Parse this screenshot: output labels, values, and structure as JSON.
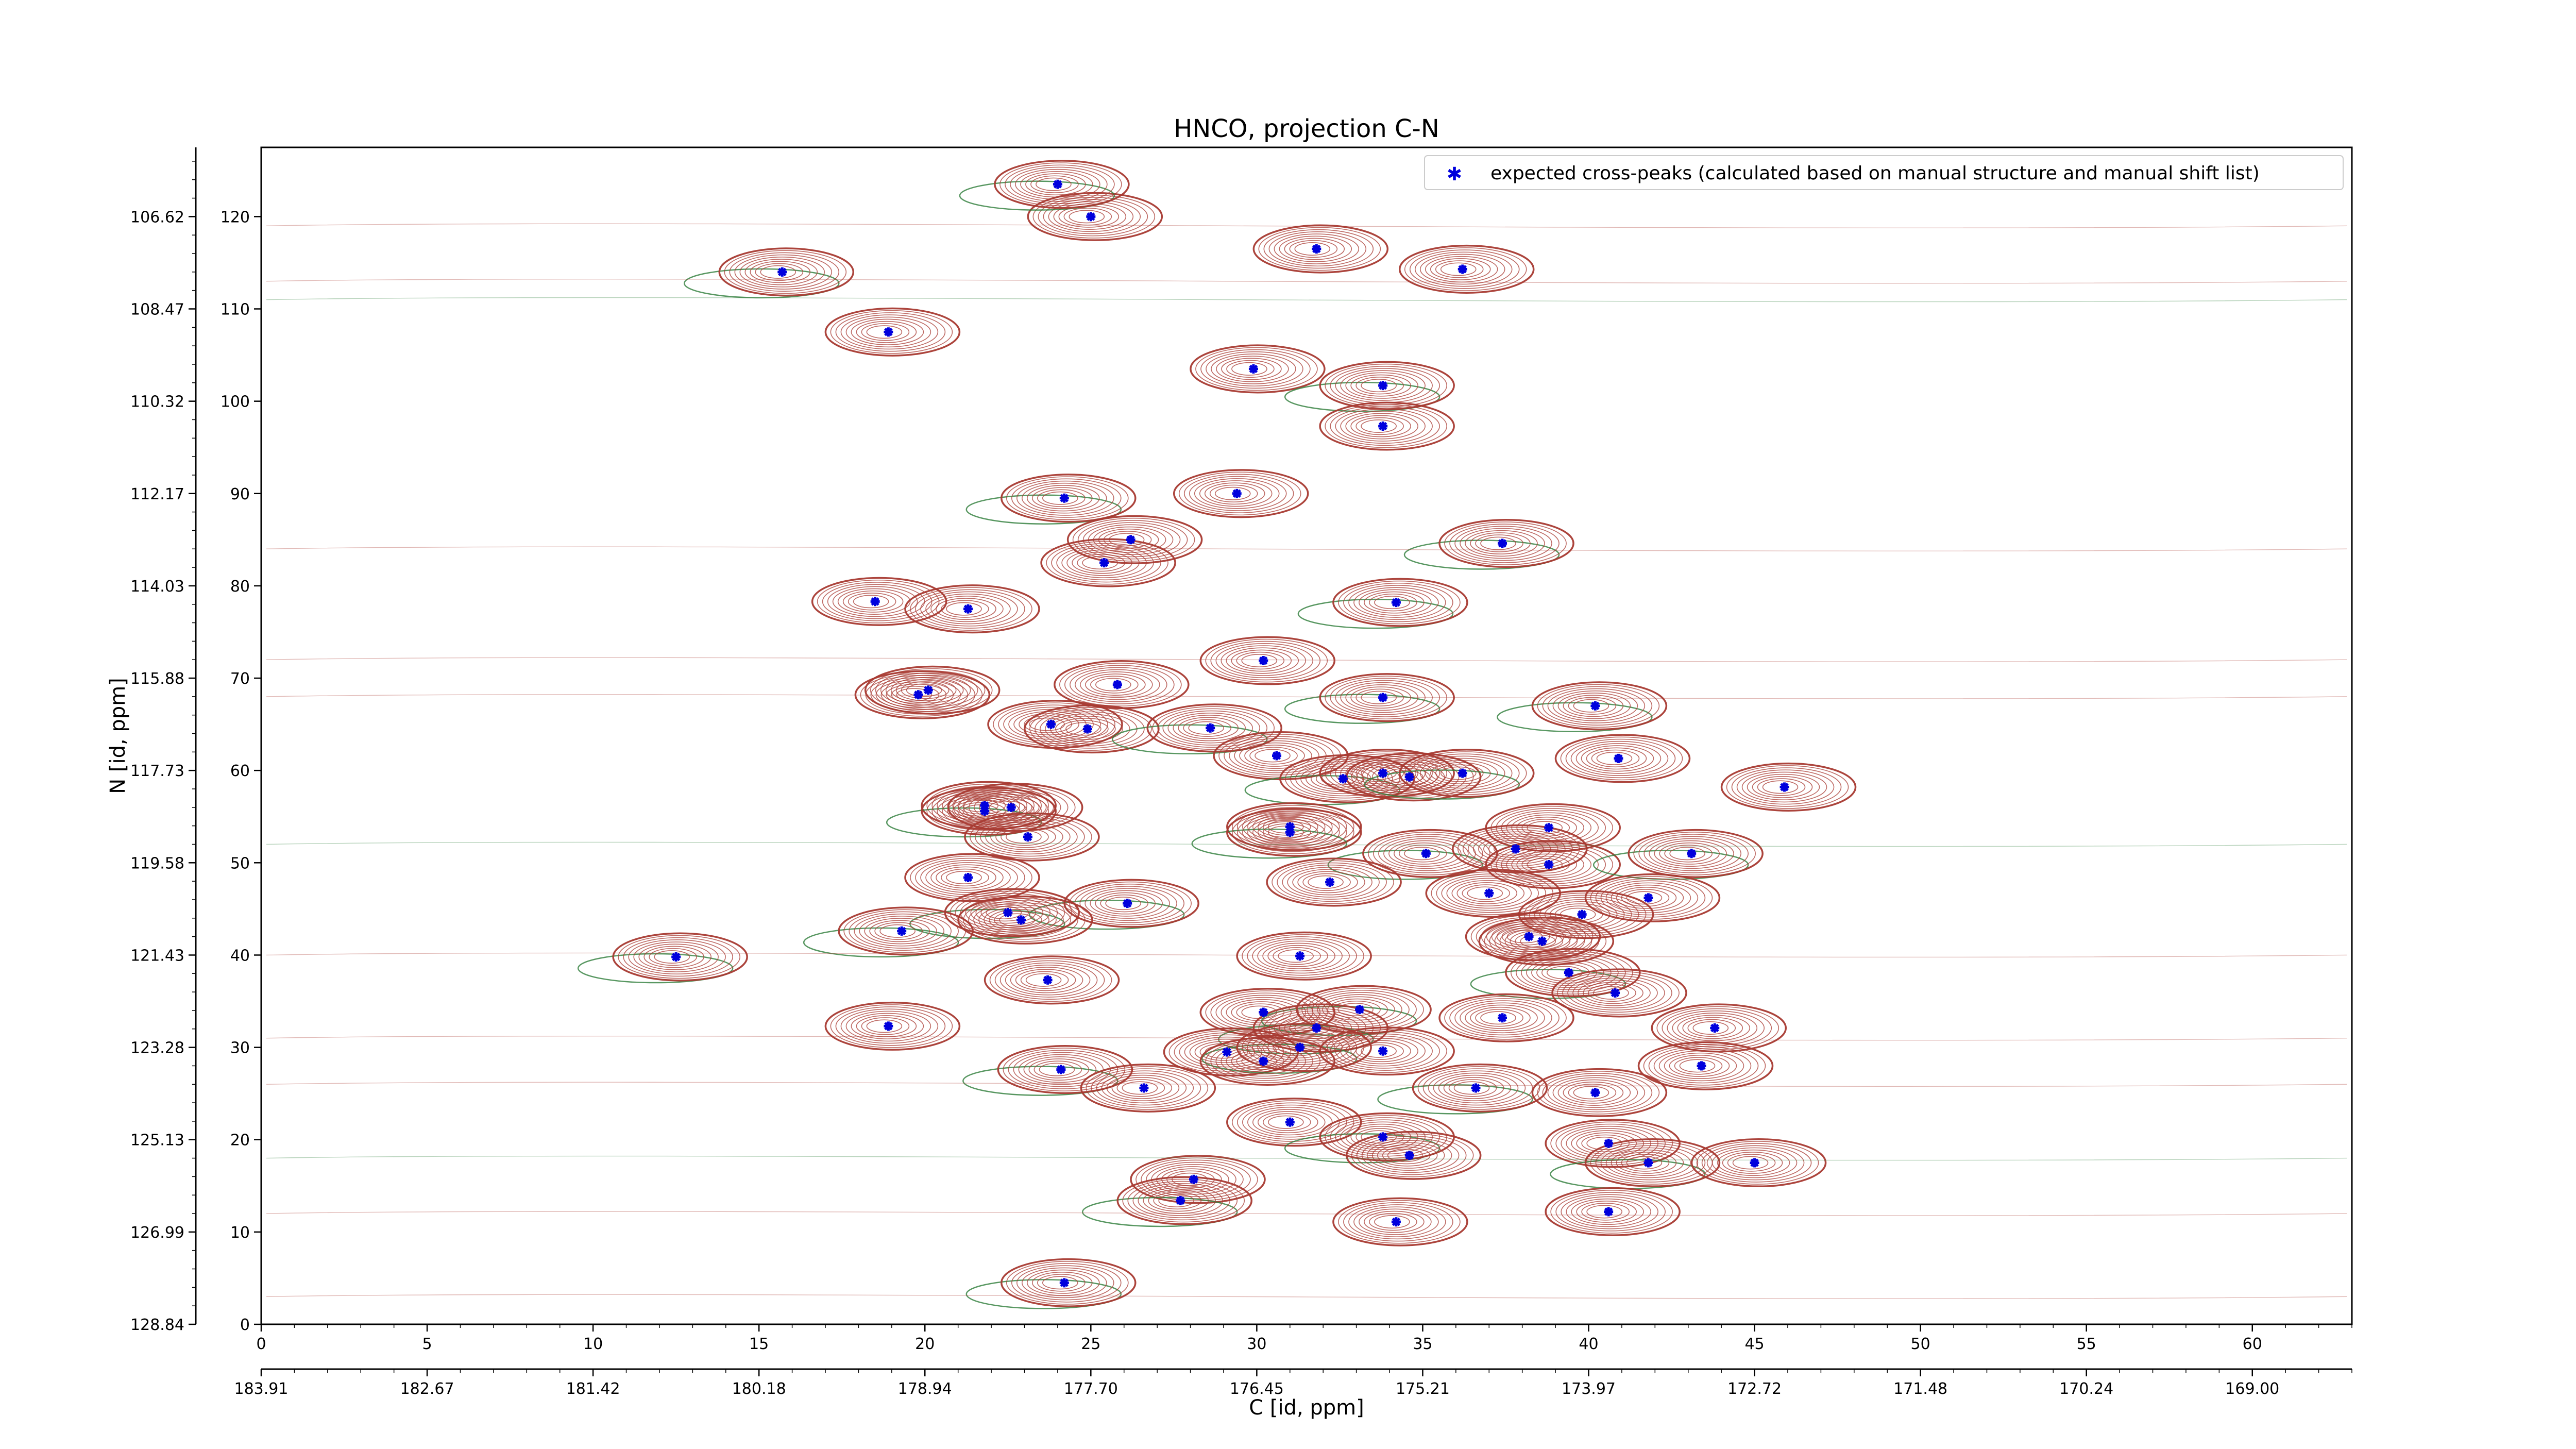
{
  "chart_data": {
    "type": "scatter",
    "title": "HNCO, projection C-N",
    "xlabel": "C [id, ppm]",
    "ylabel": "N [id, ppm]",
    "xlim": [
      0,
      63
    ],
    "ylim": [
      0,
      127.5
    ],
    "x_ticks": [
      0,
      5,
      10,
      15,
      20,
      25,
      30,
      35,
      40,
      45,
      50,
      55,
      60
    ],
    "y_ticks": [
      0,
      10,
      20,
      30,
      40,
      50,
      60,
      70,
      80,
      90,
      100,
      110,
      120
    ],
    "secondary_x_tick_labels": [
      "183.91",
      "182.67",
      "181.42",
      "180.18",
      "178.94",
      "177.70",
      "176.45",
      "175.21",
      "173.97",
      "172.72",
      "171.48",
      "170.24",
      "169.00"
    ],
    "secondary_y_tick_labels": [
      "128.84",
      "126.99",
      "125.13",
      "123.28",
      "121.43",
      "119.58",
      "117.73",
      "115.88",
      "114.03",
      "112.17",
      "110.32",
      "108.47",
      "106.62"
    ],
    "grid": false,
    "legend_position": "top-right",
    "colors": {
      "peaks": "#0000dd",
      "positive_contour": "#a83a32",
      "negative_contour": "#2e7d3a"
    },
    "series": [
      {
        "name": "expected cross-peaks (calculated based on manual structure and manual shift list)",
        "points": [
          [
            25,
            120
          ],
          [
            24,
            123.5
          ],
          [
            31.8,
            116.5
          ],
          [
            36.2,
            114.3
          ],
          [
            15.7,
            114
          ],
          [
            18.9,
            107.5
          ],
          [
            29.9,
            103.5
          ],
          [
            33.8,
            101.7
          ],
          [
            33.8,
            97.3
          ],
          [
            29.4,
            90
          ],
          [
            24.2,
            89.5
          ],
          [
            26.2,
            85
          ],
          [
            25.4,
            82.5
          ],
          [
            37.4,
            84.6
          ],
          [
            18.5,
            78.3
          ],
          [
            21.3,
            77.5
          ],
          [
            34.2,
            78.2
          ],
          [
            30.2,
            71.9
          ],
          [
            25.8,
            69.3
          ],
          [
            33.8,
            67.9
          ],
          [
            19.8,
            68.2
          ],
          [
            20.1,
            68.7
          ],
          [
            40.2,
            67
          ],
          [
            23.8,
            65
          ],
          [
            24.9,
            64.5
          ],
          [
            28.6,
            64.6
          ],
          [
            30.6,
            61.6
          ],
          [
            40.9,
            61.3
          ],
          [
            32.6,
            59.1
          ],
          [
            33.8,
            59.7
          ],
          [
            34.6,
            59.3
          ],
          [
            36.2,
            59.7
          ],
          [
            45.9,
            58.2
          ],
          [
            21.8,
            56.2
          ],
          [
            21.8,
            55.6
          ],
          [
            22.6,
            56
          ],
          [
            31,
            53.9
          ],
          [
            31,
            53.3
          ],
          [
            23.1,
            52.8
          ],
          [
            38.8,
            53.8
          ],
          [
            35.1,
            51
          ],
          [
            37.8,
            51.5
          ],
          [
            38.8,
            49.8
          ],
          [
            43.1,
            51
          ],
          [
            21.3,
            48.4
          ],
          [
            32.2,
            47.9
          ],
          [
            26.1,
            45.6
          ],
          [
            37,
            46.7
          ],
          [
            41.8,
            46.2
          ],
          [
            22.5,
            44.6
          ],
          [
            22.9,
            43.8
          ],
          [
            39.8,
            44.4
          ],
          [
            19.3,
            42.6
          ],
          [
            38.2,
            42
          ],
          [
            38.6,
            41.5
          ],
          [
            12.5,
            39.8
          ],
          [
            31.3,
            39.9
          ],
          [
            23.7,
            37.3
          ],
          [
            39.4,
            38.1
          ],
          [
            40.8,
            35.9
          ],
          [
            30.2,
            33.8
          ],
          [
            33.1,
            34.1
          ],
          [
            37.4,
            33.2
          ],
          [
            18.9,
            32.3
          ],
          [
            31.8,
            32.1
          ],
          [
            43.8,
            32.1
          ],
          [
            29.1,
            29.5
          ],
          [
            31.3,
            30
          ],
          [
            30.2,
            28.5
          ],
          [
            33.8,
            29.6
          ],
          [
            24.1,
            27.6
          ],
          [
            26.6,
            25.6
          ],
          [
            43.4,
            28
          ],
          [
            36.6,
            25.6
          ],
          [
            40.2,
            25.1
          ],
          [
            31,
            21.9
          ],
          [
            33.8,
            20.3
          ],
          [
            40.6,
            19.6
          ],
          [
            34.6,
            18.3
          ],
          [
            41.8,
            17.5
          ],
          [
            45,
            17.5
          ],
          [
            28.1,
            15.7
          ],
          [
            27.7,
            13.4
          ],
          [
            34.2,
            11.1
          ],
          [
            40.6,
            12.2
          ],
          [
            24.2,
            4.5
          ]
        ]
      }
    ]
  }
}
